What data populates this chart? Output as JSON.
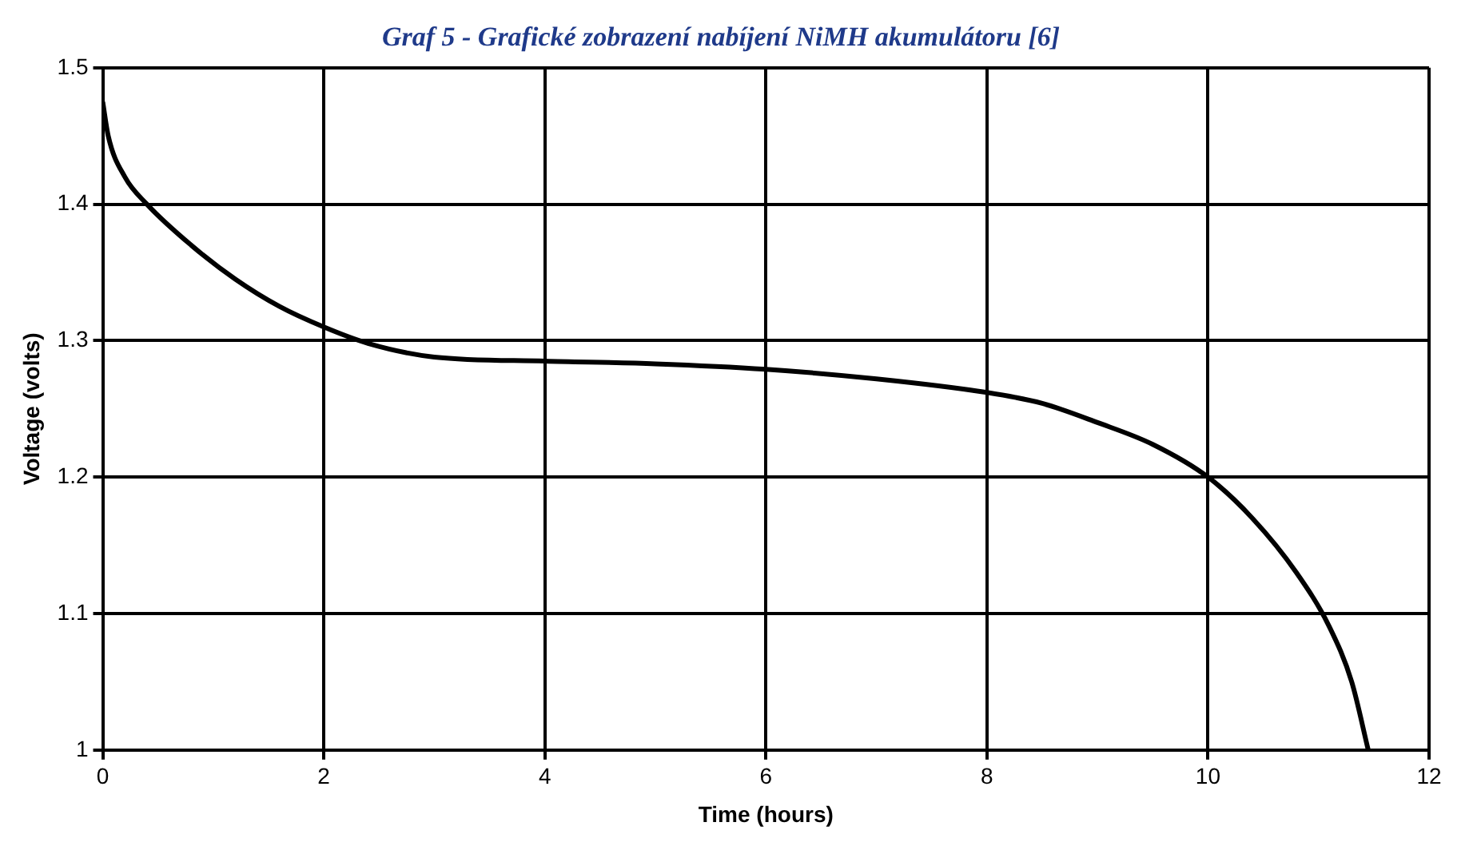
{
  "chart_data": {
    "type": "line",
    "title": "Graf 5 - Grafické zobrazení nabíjení NiMH akumulátoru [6]",
    "xlabel": "Time (hours)",
    "ylabel": "Voltage (volts)",
    "x": [
      0,
      0.05,
      0.2,
      0.4,
      0.8,
      1.2,
      1.6,
      2,
      2.4,
      3,
      4,
      5,
      6,
      7,
      8,
      8.5,
      9,
      9.5,
      10,
      10.4,
      10.8,
      11.1,
      11.3,
      11.45
    ],
    "series": [
      {
        "color": "#000000",
        "values": [
          1.475,
          1.45,
          1.42,
          1.4,
          1.37,
          1.345,
          1.325,
          1.31,
          1.298,
          1.288,
          1.285,
          1.283,
          1.279,
          1.272,
          1.262,
          1.254,
          1.24,
          1.224,
          1.2,
          1.17,
          1.13,
          1.09,
          1.05,
          1.0
        ]
      }
    ],
    "xlim": [
      0,
      12
    ],
    "xticks": [
      0,
      2,
      4,
      6,
      8,
      10,
      12
    ],
    "ylim": [
      1,
      1.5
    ],
    "yticks": [
      1,
      1.1,
      1.2,
      1.3,
      1.4,
      1.5
    ],
    "grid": true,
    "legend": false,
    "marker": "none",
    "line_style": "solid"
  }
}
